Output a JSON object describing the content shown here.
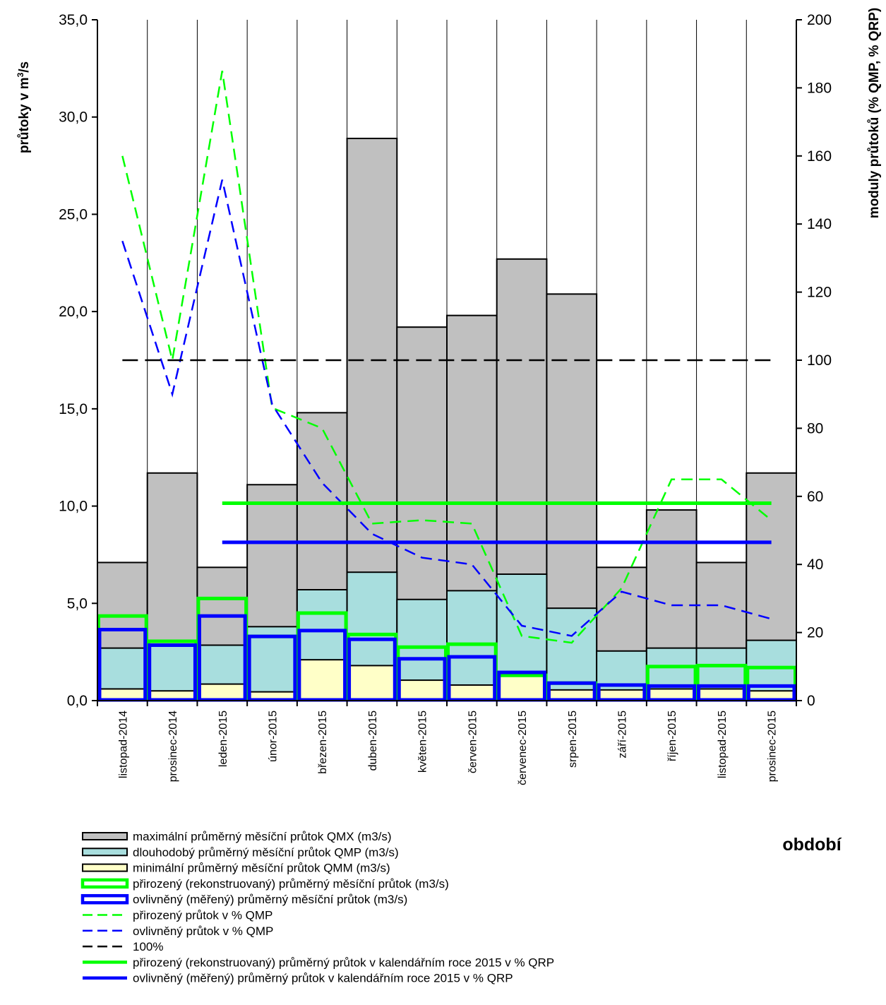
{
  "chart_data": {
    "type": "bar",
    "categories": [
      "listopad-2014",
      "prosinec-2014",
      "leden-2015",
      "únor-2015",
      "březen-2015",
      "duben-2015",
      "květen-2015",
      "červen-2015",
      "červenec-2015",
      "srpen-2015",
      "září-2015",
      "říjen-2015",
      "listopad-2015",
      "prosinec-2015"
    ],
    "y_left": {
      "label": "průtoky v m³/s",
      "label_main": "průtoky v m",
      "label_sup": "3",
      "label_tail": "/s",
      "ylim": [
        0,
        35
      ],
      "ticks": [
        "0,0",
        "5,0",
        "10,0",
        "15,0",
        "20,0",
        "25,0",
        "30,0",
        "35,0"
      ]
    },
    "y_right": {
      "label": "moduly průtoků (% QMP, % QRP)",
      "ylim": [
        0,
        200
      ],
      "ticks": [
        "0",
        "20",
        "40",
        "60",
        "80",
        "100",
        "120",
        "140",
        "160",
        "180",
        "200"
      ]
    },
    "xlabel": "období",
    "grid": "vertical category lines",
    "legend_position": "bottom",
    "series": [
      {
        "name": "maximální průměrný měsíční  průtok QMX (m3/s)",
        "kind": "bar",
        "axis": "left",
        "color": "#c0c0c0",
        "values": [
          7.1,
          11.7,
          6.85,
          11.1,
          14.8,
          28.9,
          19.2,
          19.8,
          22.7,
          20.9,
          6.85,
          9.8,
          7.1,
          11.7
        ]
      },
      {
        "name": "dlouhodobý průměrný měsíční průtok QMP (m3/s)",
        "kind": "bar",
        "axis": "left",
        "color": "#a8dede",
        "values": [
          2.7,
          2.9,
          2.85,
          3.8,
          5.7,
          6.6,
          5.2,
          5.65,
          6.5,
          4.75,
          2.55,
          2.7,
          2.7,
          3.1
        ]
      },
      {
        "name": "minimální průměrný měsíční  průtok QMM (m3/s)",
        "kind": "bar",
        "axis": "left",
        "color": "#ffffc8",
        "values": [
          0.6,
          0.5,
          0.85,
          0.45,
          2.1,
          1.8,
          1.05,
          0.8,
          1.25,
          0.55,
          0.55,
          0.6,
          0.6,
          0.5
        ]
      },
      {
        "name": "přirozený (rekonstruovaný) průměrný měsíční průtok (m3/s)",
        "kind": "step",
        "axis": "left",
        "color": "#00ff00",
        "values": [
          4.35,
          3.05,
          5.25,
          3.3,
          4.5,
          3.4,
          2.75,
          2.9,
          1.3,
          0.9,
          0.8,
          1.75,
          1.8,
          1.7
        ]
      },
      {
        "name": "ovlivněný (měřený) průměrný měsíční průtok (m3/s)",
        "kind": "step",
        "axis": "left",
        "color": "#0000ff",
        "values": [
          3.65,
          2.85,
          4.35,
          3.3,
          3.6,
          3.15,
          2.15,
          2.25,
          1.45,
          0.9,
          0.8,
          0.75,
          0.75,
          0.75
        ]
      },
      {
        "name": "přirozený průtok v % QMP",
        "kind": "dashed",
        "axis": "right",
        "color": "#00ff00",
        "values": [
          160,
          100,
          185,
          86,
          80,
          52,
          53,
          52,
          19,
          17,
          33,
          65,
          65,
          53
        ]
      },
      {
        "name": "ovlivněný průtok v % QMP",
        "kind": "dashed",
        "axis": "right",
        "color": "#0000ff",
        "values": [
          135,
          90,
          153,
          87,
          64,
          49,
          42,
          40,
          22,
          19,
          32,
          28,
          28,
          24
        ]
      },
      {
        "name": "100%",
        "kind": "dashed",
        "axis": "right",
        "color": "#000000",
        "x_range": [
          "listopad-2014",
          "prosinec-2015"
        ],
        "value": 100
      },
      {
        "name": "přirozený (rekonstruovaný) průměrný průtok v kalendářním roce 2015 v % QRP",
        "kind": "hline",
        "axis": "right",
        "color": "#00ff00",
        "x_range": [
          "leden-2015",
          "prosinec-2015"
        ],
        "value": 58
      },
      {
        "name": "ovlivněný (měřený) průměrný průtok v kalendářním roce 2015 v % QRP",
        "kind": "hline",
        "axis": "right",
        "color": "#0000ff",
        "x_range": [
          "leden-2015",
          "prosinec-2015"
        ],
        "value": 46.5
      }
    ]
  }
}
